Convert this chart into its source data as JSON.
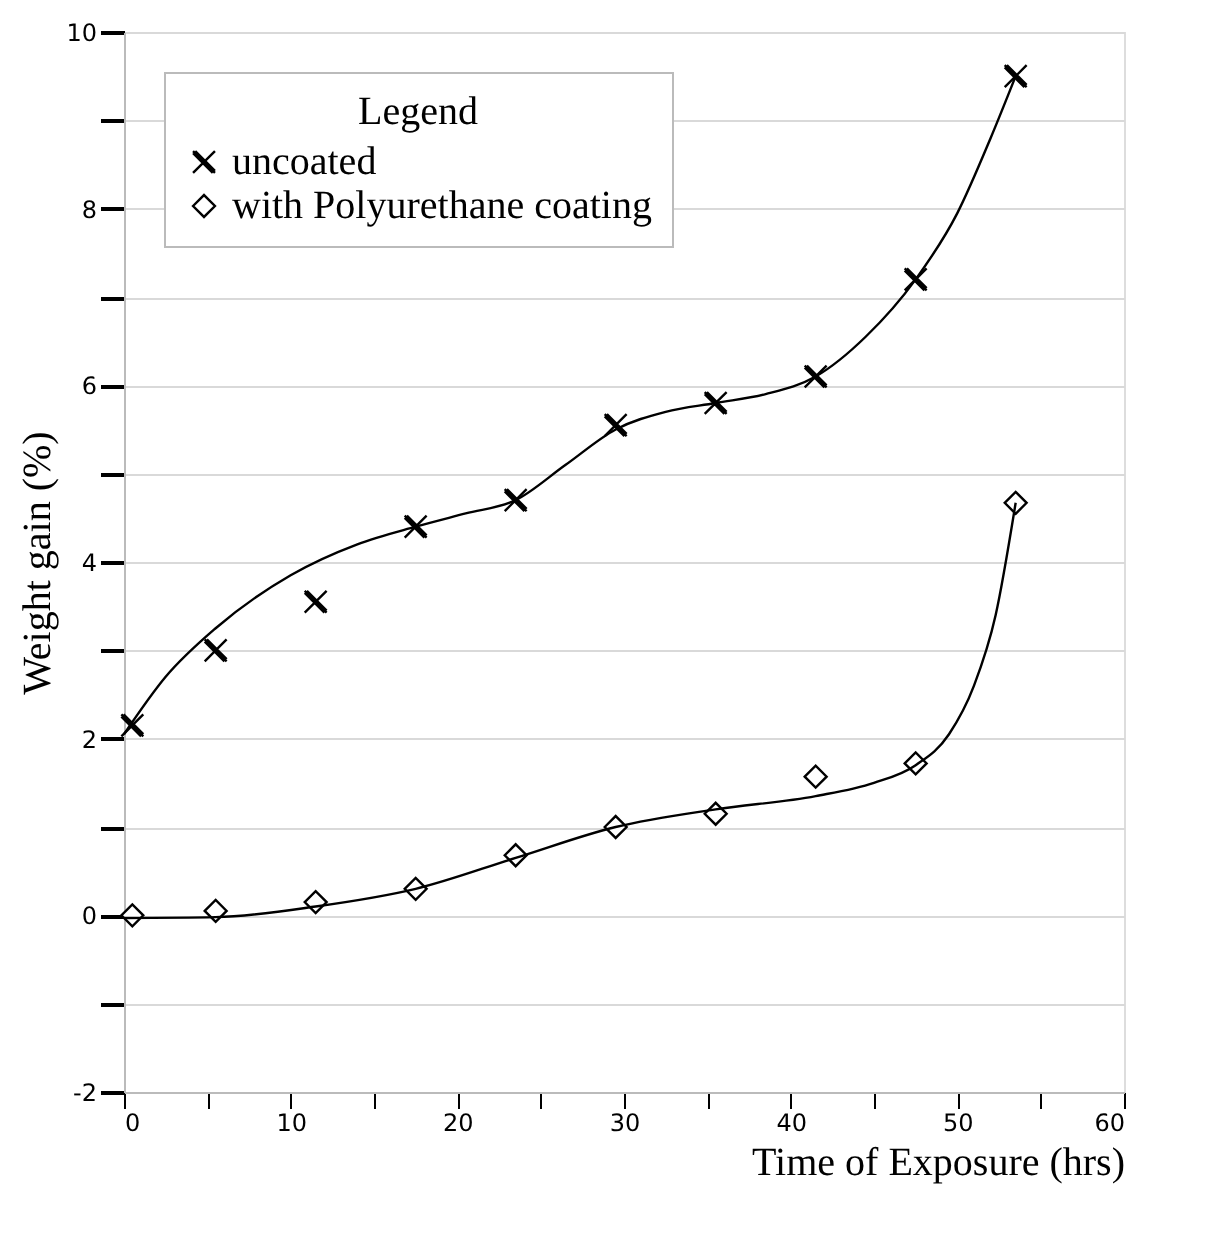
{
  "chart_data": {
    "type": "scatter",
    "xlabel": "Time of Exposure (hrs)",
    "ylabel": "Weight gain (%)",
    "legend_title": "Legend",
    "legend": "top left",
    "grid": "y",
    "xlim": [
      0,
      60
    ],
    "ylim": [
      -2,
      10
    ],
    "xticks": [
      0,
      {
        "value": 5,
        "label": null
      },
      10,
      {
        "value": 15,
        "label": null
      },
      20,
      {
        "value": 25,
        "label": null
      },
      30,
      {
        "value": 35,
        "label": null
      },
      40,
      {
        "value": 45,
        "label": null
      },
      50,
      {
        "value": 55,
        "label": null
      },
      60
    ],
    "yticks": [
      -2,
      {
        "value": -1,
        "label": null
      },
      0,
      {
        "value": 1,
        "label": null
      },
      2,
      {
        "value": 3,
        "label": null
      },
      4,
      {
        "value": 5,
        "label": null
      },
      6,
      {
        "value": 7,
        "label": null
      },
      8,
      {
        "value": 9,
        "label": null
      },
      10
    ],
    "series": [
      {
        "name": "uncoated",
        "color": "#000000",
        "marker": "cross",
        "x": [
          0.5,
          5.5,
          11.5,
          17.5,
          23.5,
          29.5,
          35.5,
          41.5,
          47.5,
          53.5
        ],
        "values": [
          2.15,
          3.0,
          3.55,
          4.4,
          4.7,
          5.55,
          5.8,
          6.1,
          7.2,
          9.5
        ]
      },
      {
        "name": "with Polyurethane coating",
        "color": "#000000",
        "marker": "diamond",
        "x": [
          0.5,
          5.5,
          11.5,
          17.5,
          23.5,
          29.5,
          35.5,
          41.5,
          47.5,
          53.5
        ],
        "values": [
          0.0,
          0.05,
          0.15,
          0.3,
          0.68,
          1.0,
          1.15,
          1.57,
          1.72,
          4.67
        ]
      },
      {
        "type": "line",
        "color": "#000000",
        "line_style": "solid",
        "x": [
          0,
          2.5,
          5.5,
          10,
          14,
          17.5,
          20.5,
          23.5,
          26.5,
          29.5,
          32.5,
          35.5,
          38.5,
          41.5,
          44.5,
          47.5,
          50,
          52,
          53.5
        ],
        "values": [
          2.05,
          2.7,
          3.25,
          3.85,
          4.2,
          4.4,
          4.55,
          4.7,
          5.1,
          5.5,
          5.7,
          5.8,
          5.9,
          6.1,
          6.55,
          7.2,
          7.95,
          8.8,
          9.5
        ]
      },
      {
        "type": "line",
        "color": "#000000",
        "line_style": "solid",
        "x": [
          0,
          5.5,
          11.5,
          17.5,
          23.5,
          29.5,
          35.5,
          41.5,
          45,
          47.5,
          49.5,
          51,
          52.3,
          53.5
        ],
        "values": [
          -0.03,
          -0.02,
          0.1,
          0.3,
          0.65,
          1.0,
          1.2,
          1.35,
          1.5,
          1.7,
          2.05,
          2.6,
          3.4,
          4.67
        ]
      }
    ]
  }
}
